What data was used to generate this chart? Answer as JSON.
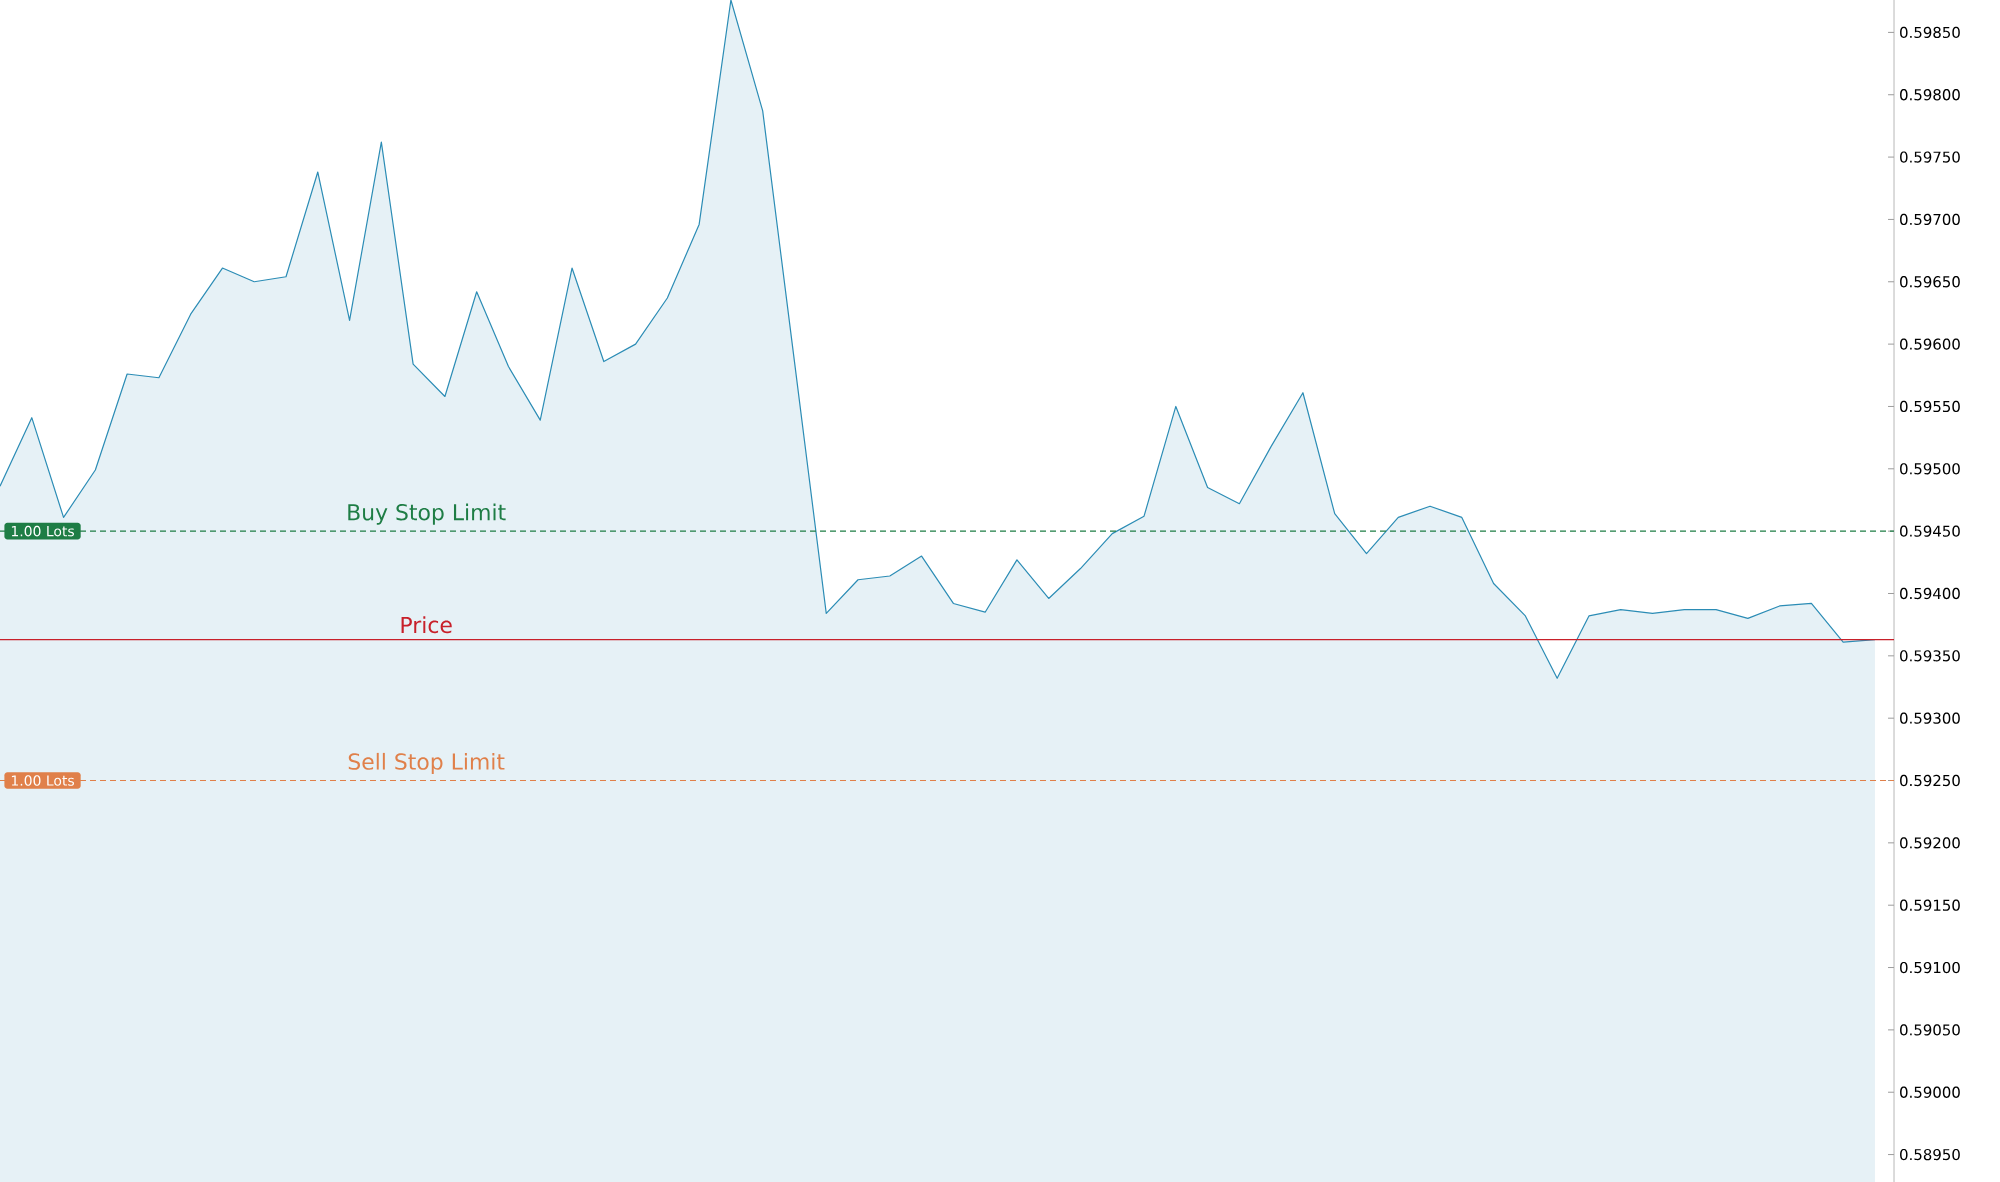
{
  "chart_data": {
    "type": "area",
    "categories": [
      null,
      null,
      null,
      null,
      null,
      null,
      null,
      null,
      null,
      null,
      null,
      null,
      null,
      null,
      null,
      null,
      null,
      null,
      null,
      null,
      null,
      null,
      null,
      null,
      null,
      null,
      null,
      null,
      null,
      null,
      null,
      null,
      null,
      null,
      null,
      null,
      null,
      null,
      null,
      null,
      null,
      null,
      null,
      null,
      null,
      null,
      null,
      null,
      null,
      null,
      null,
      null,
      null,
      null,
      null,
      null,
      null,
      null,
      null,
      null
    ],
    "series": [
      {
        "color": "#2b8cb5",
        "values": [
          0.59486,
          0.59541,
          0.59461,
          0.59499,
          0.59576,
          0.59573,
          0.59624,
          0.59661,
          0.5965,
          0.59654,
          0.59738,
          0.59619,
          0.59762,
          0.59584,
          0.59558,
          0.59642,
          0.59582,
          0.59539,
          0.59661,
          0.59586,
          0.596,
          0.59637,
          0.59696,
          0.59876,
          0.59787,
          0.59586,
          0.59384,
          0.59411,
          0.59414,
          0.5943,
          0.59392,
          0.59385,
          0.59427,
          0.59396,
          0.5942,
          0.59448,
          0.59462,
          0.5955,
          0.59485,
          0.59472,
          0.59518,
          0.59561,
          0.59464,
          0.59432,
          0.59461,
          0.5947,
          0.59461,
          0.59408,
          0.59382,
          0.59332,
          0.59382,
          0.59387,
          0.59384,
          0.59387,
          0.59387,
          0.5938,
          0.5939,
          0.59392,
          0.59361,
          0.59363
        ]
      }
    ],
    "ylim": [
      0.58928,
      0.59876
    ],
    "yticks": [
      {
        "value": 0.5895,
        "label": "0.58950"
      },
      {
        "value": 0.59,
        "label": "0.59000"
      },
      {
        "value": 0.5905,
        "label": "0.59050"
      },
      {
        "value": 0.591,
        "label": "0.59100"
      },
      {
        "value": 0.5915,
        "label": "0.59150"
      },
      {
        "value": 0.592,
        "label": "0.59200"
      },
      {
        "value": 0.5925,
        "label": "0.59250"
      },
      {
        "value": 0.593,
        "label": "0.59300"
      },
      {
        "value": 0.5935,
        "label": "0.59350"
      },
      {
        "value": 0.594,
        "label": "0.59400"
      },
      {
        "value": 0.5945,
        "label": "0.59450"
      },
      {
        "value": 0.595,
        "label": "0.59500"
      },
      {
        "value": 0.5955,
        "label": "0.59550"
      },
      {
        "value": 0.596,
        "label": "0.59600"
      },
      {
        "value": 0.5965,
        "label": "0.59650"
      },
      {
        "value": 0.597,
        "label": "0.59700"
      },
      {
        "value": 0.5975,
        "label": "0.59750"
      },
      {
        "value": 0.598,
        "label": "0.59800"
      },
      {
        "value": 0.5985,
        "label": "0.59850"
      }
    ],
    "tick_labels": "y",
    "ref_lines": [
      {
        "axis": "y",
        "value": 0.5945,
        "label": "Buy Stop Limit",
        "color": "#1e7d45",
        "line_style": "dashed"
      },
      {
        "axis": "y",
        "value": 0.59363,
        "label": "Price",
        "color": "#c8202a",
        "line_style": "solid"
      },
      {
        "axis": "y",
        "value": 0.5925,
        "label": "Sell Stop Limit",
        "color": "#e0804a",
        "line_style": "dashed"
      }
    ],
    "annotations": [
      {
        "text": "1.00 Lots",
        "y": 0.5945
      },
      {
        "text": "1.00 Lots",
        "y": 0.5925
      }
    ]
  }
}
